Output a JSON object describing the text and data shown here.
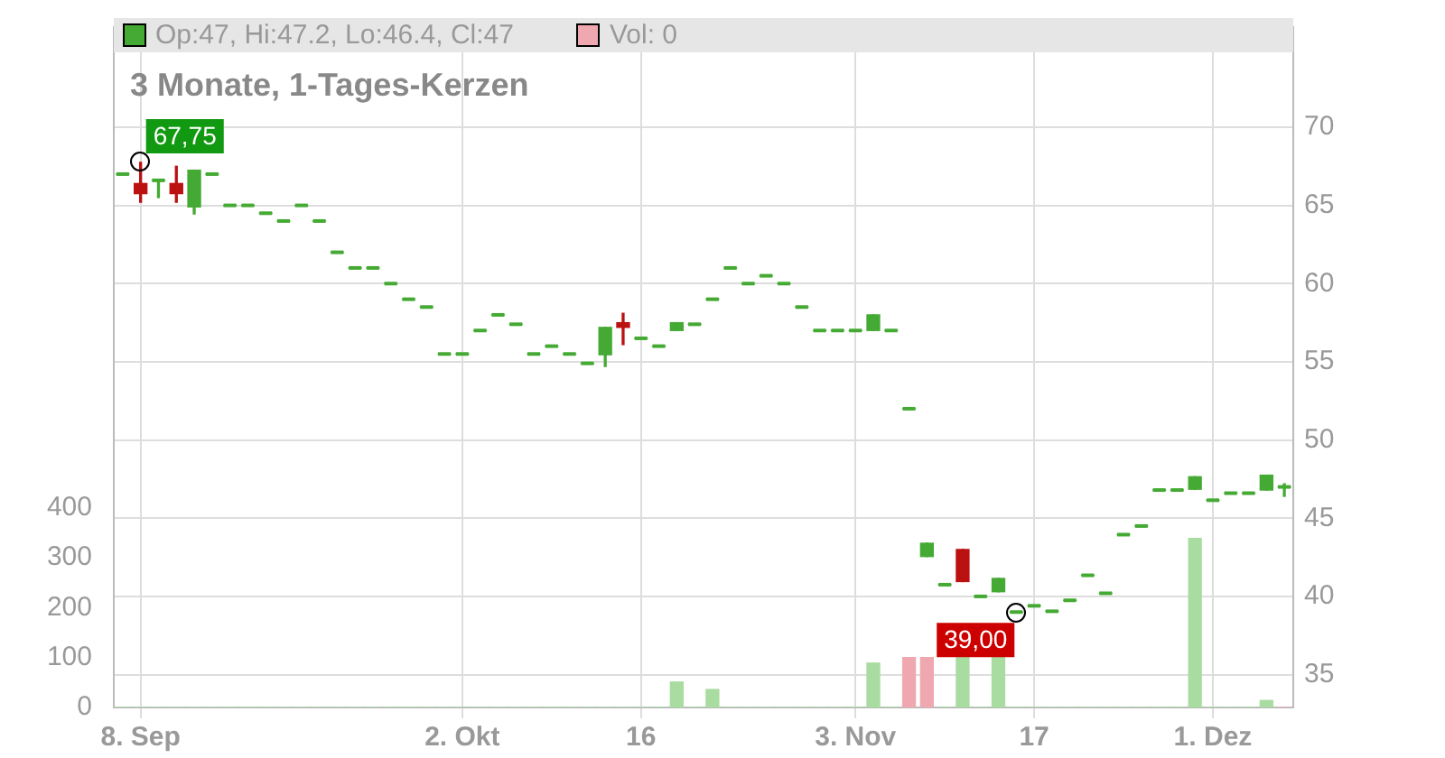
{
  "chart_data": {
    "type": "candlestick",
    "title": "3 Monate, 1-Tages-Kerzen",
    "categories": [
      null,
      "8. Sep",
      null,
      null,
      null,
      null,
      null,
      null,
      null,
      null,
      null,
      null,
      null,
      null,
      null,
      null,
      null,
      null,
      null,
      "2. Okt",
      null,
      null,
      null,
      null,
      null,
      null,
      null,
      null,
      null,
      "16",
      null,
      null,
      null,
      null,
      null,
      null,
      null,
      null,
      null,
      null,
      null,
      "3. Nov",
      null,
      null,
      null,
      null,
      null,
      null,
      null,
      null,
      null,
      "17",
      null,
      null,
      null,
      null,
      null,
      null,
      null,
      null,
      null,
      "1. Dez",
      null,
      null,
      null,
      null
    ],
    "ohlc": [
      [
        67,
        67,
        67,
        67
      ],
      [
        66.4,
        67.75,
        65.2,
        65.75
      ],
      [
        66.6,
        66.6,
        65.5,
        66.6
      ],
      [
        66.4,
        67.5,
        65.2,
        65.75
      ],
      [
        64.9,
        67.25,
        64.45,
        67.25
      ],
      [
        67,
        67,
        67,
        67
      ],
      [
        65,
        65,
        65,
        65
      ],
      [
        65,
        65,
        65,
        65
      ],
      [
        64.5,
        64.5,
        64.5,
        64.5
      ],
      [
        64,
        64,
        64,
        64
      ],
      [
        65,
        65,
        65,
        65
      ],
      [
        64,
        64,
        64,
        64
      ],
      [
        62,
        62,
        62,
        62
      ],
      [
        61,
        61,
        61,
        61
      ],
      [
        61,
        61,
        61,
        61
      ],
      [
        60,
        60,
        60,
        60
      ],
      [
        59,
        59,
        59,
        59
      ],
      [
        58.5,
        58.5,
        58.5,
        58.5
      ],
      [
        55.5,
        55.5,
        55.5,
        55.5
      ],
      [
        55.5,
        55.5,
        55.5,
        55.5
      ],
      [
        57,
        57,
        57,
        57
      ],
      [
        58,
        58,
        58,
        58
      ],
      [
        57.4,
        57.4,
        57.4,
        57.4
      ],
      [
        55.5,
        55.5,
        55.5,
        55.5
      ],
      [
        56,
        56,
        56,
        56
      ],
      [
        55.5,
        55.5,
        55.5,
        55.5
      ],
      [
        54.9,
        54.9,
        54.9,
        54.9
      ],
      [
        55.45,
        57.2,
        54.7,
        57.2
      ],
      [
        57.5,
        58.1,
        56.1,
        57.2
      ],
      [
        56.5,
        56.5,
        56.5,
        56.5
      ],
      [
        56,
        56,
        56,
        56
      ],
      [
        57,
        57.5,
        57,
        57.5
      ],
      [
        57.4,
        57.4,
        57.4,
        57.4
      ],
      [
        59,
        59,
        59,
        59
      ],
      [
        61,
        61,
        61,
        61
      ],
      [
        60,
        60,
        60,
        60
      ],
      [
        60.5,
        60.5,
        60.5,
        60.5
      ],
      [
        60,
        60,
        60,
        60
      ],
      [
        58.5,
        58.5,
        58.5,
        58.5
      ],
      [
        57,
        57,
        57,
        57
      ],
      [
        57,
        57,
        57,
        57
      ],
      [
        57,
        57,
        57,
        57
      ],
      [
        57,
        58,
        57,
        58
      ],
      [
        57,
        57,
        57,
        57
      ],
      [
        52,
        52,
        52,
        52
      ],
      [
        42.55,
        43.4,
        42.55,
        43.4
      ],
      [
        40.75,
        40.75,
        40.75,
        40.75
      ],
      [
        43,
        43,
        40.95,
        40.95
      ],
      [
        40,
        40,
        40,
        40
      ],
      [
        40.3,
        41.15,
        40.3,
        41.15
      ],
      [
        39,
        39,
        39,
        39
      ],
      [
        39.4,
        39.4,
        39.4,
        39.4
      ],
      [
        39.05,
        39.05,
        39.05,
        39.05
      ],
      [
        39.75,
        39.75,
        39.75,
        39.75
      ],
      [
        41.35,
        41.35,
        41.35,
        41.35
      ],
      [
        40.2,
        40.2,
        40.2,
        40.2
      ],
      [
        43.95,
        43.95,
        43.95,
        43.95
      ],
      [
        44.5,
        44.5,
        44.5,
        44.5
      ],
      [
        46.8,
        46.8,
        46.8,
        46.8
      ],
      [
        46.8,
        46.8,
        46.8,
        46.8
      ],
      [
        46.85,
        47.65,
        46.85,
        47.65
      ],
      [
        46.15,
        46.15,
        46.15,
        46.15
      ],
      [
        46.6,
        46.6,
        46.6,
        46.6
      ],
      [
        46.6,
        46.6,
        46.6,
        46.6
      ],
      [
        46.8,
        47.75,
        46.8,
        47.75
      ],
      [
        47,
        47.2,
        46.4,
        47
      ]
    ],
    "colors": [
      "#44aa33",
      "#bb1111",
      "#44aa33",
      "#bb1111",
      "#44aa33",
      "#44aa33",
      "#44aa33",
      "#44aa33",
      "#44aa33",
      "#44aa33",
      "#44aa33",
      "#44aa33",
      "#44aa33",
      "#44aa33",
      "#44aa33",
      "#44aa33",
      "#44aa33",
      "#44aa33",
      "#44aa33",
      "#44aa33",
      "#44aa33",
      "#44aa33",
      "#44aa33",
      "#44aa33",
      "#44aa33",
      "#44aa33",
      "#44aa33",
      "#44aa33",
      "#bb1111",
      "#44aa33",
      "#44aa33",
      "#44aa33",
      "#44aa33",
      "#44aa33",
      "#44aa33",
      "#44aa33",
      "#44aa33",
      "#44aa33",
      "#44aa33",
      "#44aa33",
      "#44aa33",
      "#44aa33",
      "#44aa33",
      "#44aa33",
      "#44aa33",
      "#44aa33",
      "#44aa33",
      "#bb1111",
      "#44aa33",
      "#44aa33",
      "#44aa33",
      "#44aa33",
      "#44aa33",
      "#44aa33",
      "#44aa33",
      "#44aa33",
      "#44aa33",
      "#44aa33",
      "#44aa33",
      "#44aa33",
      "#44aa33",
      "#44aa33",
      "#44aa33",
      "#44aa33",
      "#44aa33",
      "#44aa33"
    ],
    "series": [
      {
        "type": "bar",
        "axis": "y2",
        "values": [
          0,
          0,
          0,
          0,
          0,
          0,
          0,
          0,
          0,
          0,
          0,
          0,
          0,
          0,
          0,
          0,
          0,
          0,
          0,
          0,
          0,
          0,
          0,
          0,
          0,
          0,
          0,
          0,
          0,
          0,
          0,
          51,
          0,
          36,
          0,
          0,
          0,
          0,
          0,
          0,
          0,
          0,
          89,
          0,
          100,
          100,
          0,
          100,
          0,
          100,
          0,
          0,
          0,
          0,
          0,
          0,
          0,
          0,
          0,
          0,
          339,
          0,
          0,
          0,
          14,
          0
        ],
        "colors": [
          "#a8dca0",
          "#a8dca0",
          "#a8dca0",
          "#a8dca0",
          "#a8dca0",
          "#a8dca0",
          "#a8dca0",
          "#a8dca0",
          "#a8dca0",
          "#a8dca0",
          "#a8dca0",
          "#a8dca0",
          "#a8dca0",
          "#a8dca0",
          "#a8dca0",
          "#a8dca0",
          "#a8dca0",
          "#a8dca0",
          "#a8dca0",
          "#a8dca0",
          "#a8dca0",
          "#a8dca0",
          "#a8dca0",
          "#a8dca0",
          "#a8dca0",
          "#a8dca0",
          "#a8dca0",
          "#a8dca0",
          "#a8dca0",
          "#a8dca0",
          "#a8dca0",
          "#a8dca0",
          "#a8dca0",
          "#a8dca0",
          "#a8dca0",
          "#a8dca0",
          "#a8dca0",
          "#a8dca0",
          "#a8dca0",
          "#a8dca0",
          "#a8dca0",
          "#a8dca0",
          "#a8dca0",
          "#a8dca0",
          "#f0a8b0",
          "#f0a8b0",
          "#a8dca0",
          "#a8dca0",
          "#a8dca0",
          "#a8dca0",
          "#a8dca0",
          "#a8dca0",
          "#a8dca0",
          "#a8dca0",
          "#a8dca0",
          "#a8dca0",
          "#a8dca0",
          "#a8dca0",
          "#a8dca0",
          "#a8dca0",
          "#a8dca0",
          "#a8dca0",
          "#a8dca0",
          "#a8dca0",
          "#a8dca0",
          "#f0a8b0"
        ]
      }
    ],
    "ylim": [
      32.9,
      76.4
    ],
    "yticks": [
      35,
      40,
      45,
      50,
      55,
      60,
      65,
      70
    ],
    "y2lim": [
      0,
      1364
    ],
    "y2ticks": [
      0,
      100,
      200,
      300,
      400
    ],
    "grid": true,
    "annotations": [
      {
        "text": "67,75",
        "x": "8. Sep",
        "y": 67.75
      },
      "39,00",
      "Op:47, Hi:47.2, Lo:46.4, Cl:47",
      "Vol: 0"
    ]
  }
}
